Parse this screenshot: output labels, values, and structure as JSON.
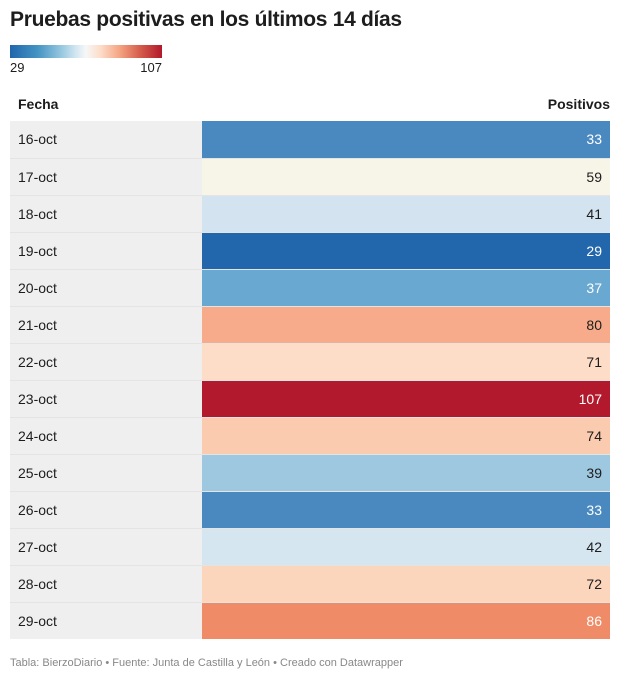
{
  "title": "Pruebas positivas en los últimos 14 días",
  "legend": {
    "min": "29",
    "max": "107"
  },
  "headers": {
    "date": "Fecha",
    "value": "Positivos"
  },
  "colors": {
    "scale": [
      "#2166ac",
      "#4393c3",
      "#92c5de",
      "#d1e5f0",
      "#f7f7f7",
      "#fddbc7",
      "#f4a582",
      "#d6604d",
      "#b2182b"
    ],
    "date_bg": "#efefef"
  },
  "chart_data": {
    "type": "table",
    "title": "Pruebas positivas en los últimos 14 días",
    "columns": [
      "Fecha",
      "Positivos"
    ],
    "rows": [
      {
        "date": "16-oct",
        "value": 33,
        "color": "#4a89c0",
        "text_color": "#ffffff"
      },
      {
        "date": "17-oct",
        "value": 59,
        "color": "#f7f4e8",
        "text_color": "#1d1d1d"
      },
      {
        "date": "18-oct",
        "value": 41,
        "color": "#d3e4f0",
        "text_color": "#1d1d1d"
      },
      {
        "date": "19-oct",
        "value": 29,
        "color": "#2266ac",
        "text_color": "#ffffff"
      },
      {
        "date": "20-oct",
        "value": 37,
        "color": "#68a8d1",
        "text_color": "#ffffff"
      },
      {
        "date": "21-oct",
        "value": 80,
        "color": "#f7ab8a",
        "text_color": "#1d1d1d"
      },
      {
        "date": "22-oct",
        "value": 71,
        "color": "#fddcc8",
        "text_color": "#1d1d1d"
      },
      {
        "date": "23-oct",
        "value": 107,
        "color": "#b2192c",
        "text_color": "#ffffff"
      },
      {
        "date": "24-oct",
        "value": 74,
        "color": "#fbcbb0",
        "text_color": "#1d1d1d"
      },
      {
        "date": "25-oct",
        "value": 39,
        "color": "#9ec7e0",
        "text_color": "#1d1d1d"
      },
      {
        "date": "26-oct",
        "value": 33,
        "color": "#4a89c0",
        "text_color": "#ffffff"
      },
      {
        "date": "27-oct",
        "value": 42,
        "color": "#d6e6f1",
        "text_color": "#1d1d1d"
      },
      {
        "date": "28-oct",
        "value": 72,
        "color": "#fcd5bd",
        "text_color": "#1d1d1d"
      },
      {
        "date": "29-oct",
        "value": 86,
        "color": "#ef8b66",
        "text_color": "#ffffff"
      }
    ]
  },
  "footer": "Tabla: BierzoDiario • Fuente: Junta de Castilla y León • Creado con Datawrapper"
}
